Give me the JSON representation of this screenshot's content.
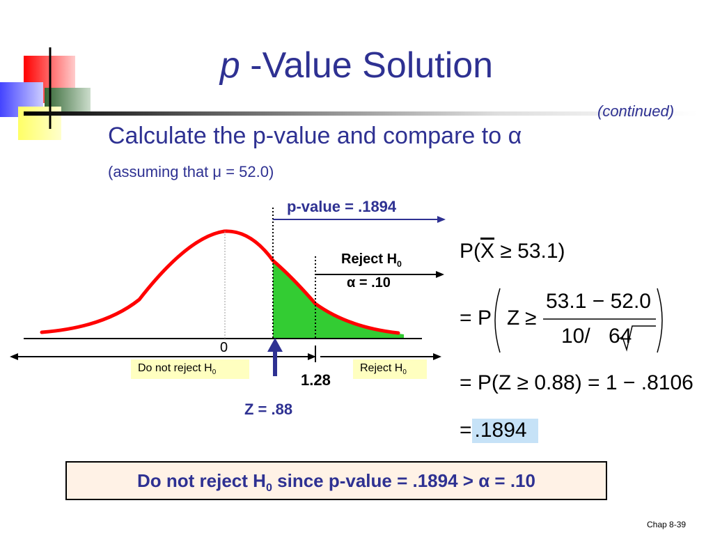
{
  "title": {
    "prefix": "p",
    "main": " -Value Solution"
  },
  "continued": "(continued)",
  "heading": {
    "text": "Calculate the p-value and compare to",
    "symbol": "α"
  },
  "subheading": "(assuming that μ = 52.0)",
  "diagram": {
    "pvalue_label": "p-value = .1894",
    "reject_label": "Reject H",
    "reject_sub": "0",
    "alpha_label": "α = .10",
    "zero_label": "0",
    "critical_label": "1.28",
    "z_label": "Z = .88",
    "do_not_reject_box": {
      "text": "Do not reject H",
      "sub": "0"
    },
    "reject_box": {
      "text": "Reject H",
      "sub": "0"
    }
  },
  "equations": {
    "line1": {
      "p": "P(",
      "x": "X",
      "ge": "≥",
      "val": "53.1)"
    },
    "line2": {
      "eq": "=",
      "p": "P",
      "z": "Z",
      "ge": "≥",
      "numerator": "53.1 − 52.0",
      "den_a": "10/",
      "den_b": "64"
    },
    "line3": "= P(Z ≥ 0.88) = 1 − .8106",
    "line4": {
      "eq": "=",
      "value": ".1894"
    }
  },
  "conclusion": {
    "a": "Do not reject H",
    "sub": "0",
    "b": " since p-value = .1894 > ",
    "alpha": "α",
    "c": " = .10"
  },
  "footer": "Chap 8-39",
  "colors": {
    "title": "#2E3192",
    "curve": "#FF0000",
    "shade": "#33CC33",
    "box": "#FFFFC0",
    "highlight": "#C6E2F7"
  }
}
